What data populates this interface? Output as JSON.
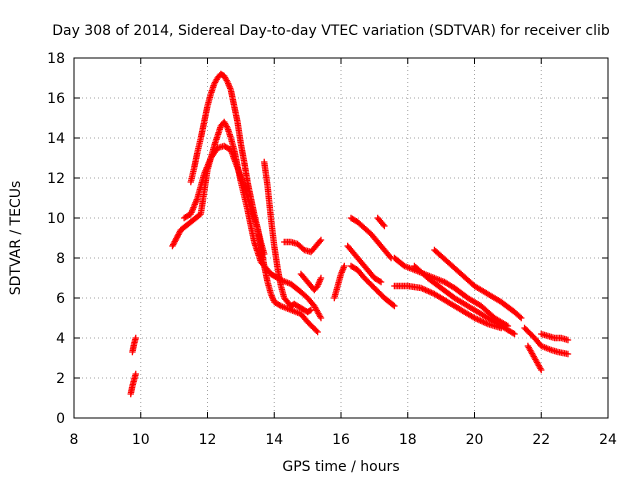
{
  "chart_data": {
    "type": "scatter",
    "title": "Day 308 of 2014, Sidereal Day-to-day VTEC variation (SDTVAR) for receiver clib",
    "xlabel": "GPS time / hours",
    "ylabel": "SDTVAR / TECUs",
    "xlim": [
      8,
      24
    ],
    "ylim": [
      0,
      18
    ],
    "xticks": [
      "8",
      "10",
      "12",
      "14",
      "16",
      "18",
      "20",
      "22",
      "24"
    ],
    "yticks": [
      "0",
      "2",
      "4",
      "6",
      "8",
      "10",
      "12",
      "14",
      "16",
      "18"
    ],
    "grid": true,
    "marker": "+",
    "series_color": "#ff0000",
    "segments": [
      {
        "x": [
          9.75,
          9.8,
          9.85
        ],
        "y": [
          3.3,
          3.7,
          4.0
        ]
      },
      {
        "x": [
          9.7,
          9.75,
          9.8,
          9.85
        ],
        "y": [
          1.2,
          1.6,
          1.9,
          2.2
        ]
      },
      {
        "x": [
          10.95,
          11.2,
          11.5,
          11.8,
          12.0,
          12.2,
          12.4,
          12.5,
          12.6,
          12.7,
          12.8,
          12.9,
          13.0,
          13.2,
          13.4,
          13.6,
          13.8,
          13.9,
          14.0,
          14.2,
          14.5,
          14.8,
          15.0,
          15.2,
          15.4
        ],
        "y": [
          8.6,
          9.4,
          9.8,
          10.2,
          12.4,
          13.6,
          14.6,
          14.8,
          14.5,
          14.0,
          13.4,
          12.6,
          11.8,
          10.4,
          8.8,
          7.8,
          7.4,
          7.2,
          7.1,
          6.9,
          6.7,
          6.3,
          6.0,
          5.6,
          5.0
        ]
      },
      {
        "x": [
          11.3,
          11.5,
          11.7,
          11.9,
          12.1,
          12.3,
          12.5,
          12.7,
          12.9,
          13.1,
          13.3,
          13.5,
          13.6,
          13.7,
          13.8,
          13.9,
          14.0,
          14.2,
          14.5,
          14.8,
          15.0,
          15.3
        ],
        "y": [
          10.0,
          10.2,
          11.0,
          12.2,
          13.0,
          13.5,
          13.6,
          13.4,
          12.5,
          11.6,
          10.5,
          9.5,
          8.6,
          7.6,
          6.8,
          6.2,
          5.8,
          5.6,
          5.4,
          5.2,
          4.8,
          4.3
        ]
      },
      {
        "x": [
          11.5,
          11.6,
          11.7,
          11.8,
          11.9,
          12.0,
          12.1,
          12.2,
          12.3,
          12.4,
          12.5,
          12.6,
          12.7,
          12.8,
          12.9,
          13.0,
          13.1,
          13.2,
          13.3,
          13.4,
          13.5,
          13.6,
          13.7
        ],
        "y": [
          11.8,
          12.5,
          13.3,
          14.0,
          14.8,
          15.6,
          16.2,
          16.7,
          17.0,
          17.2,
          17.1,
          16.8,
          16.4,
          15.6,
          14.8,
          13.7,
          12.8,
          11.8,
          11.0,
          10.2,
          9.5,
          8.8,
          8.2
        ]
      },
      {
        "x": [
          13.7,
          13.8,
          13.9,
          14.0,
          14.1,
          14.2,
          14.3,
          14.4,
          14.5,
          14.6,
          14.8,
          15.0,
          15.1
        ],
        "y": [
          12.8,
          11.6,
          10.0,
          8.6,
          7.5,
          6.6,
          6.0,
          5.8,
          5.6,
          5.7,
          5.5,
          5.3,
          5.4
        ]
      },
      {
        "x": [
          14.3,
          14.5,
          14.7,
          14.9,
          15.1,
          15.3,
          15.4
        ],
        "y": [
          8.8,
          8.8,
          8.7,
          8.4,
          8.3,
          8.7,
          8.9
        ]
      },
      {
        "x": [
          14.8,
          15.0,
          15.2,
          15.3,
          15.4
        ],
        "y": [
          7.2,
          6.8,
          6.4,
          6.6,
          7.0
        ]
      },
      {
        "x": [
          15.8,
          15.9,
          16.0,
          16.1
        ],
        "y": [
          6.0,
          6.6,
          7.2,
          7.6
        ]
      },
      {
        "x": [
          16.3,
          16.5,
          16.7,
          16.9,
          17.1,
          17.3,
          17.5
        ],
        "y": [
          10.0,
          9.8,
          9.5,
          9.2,
          8.8,
          8.4,
          8.0
        ]
      },
      {
        "x": [
          16.2,
          16.4,
          16.6,
          16.8,
          17.0,
          17.2
        ],
        "y": [
          8.6,
          8.2,
          7.8,
          7.4,
          7.0,
          6.8
        ]
      },
      {
        "x": [
          16.3,
          16.5,
          16.7,
          17.0,
          17.3,
          17.6
        ],
        "y": [
          7.6,
          7.4,
          7.0,
          6.5,
          6.0,
          5.6
        ]
      },
      {
        "x": [
          17.1,
          17.3
        ],
        "y": [
          10.0,
          9.6
        ]
      },
      {
        "x": [
          17.6,
          17.9,
          18.2,
          18.5,
          18.8,
          19.1,
          19.4,
          19.8,
          20.2,
          20.6,
          21.0
        ],
        "y": [
          8.0,
          7.6,
          7.4,
          7.2,
          7.0,
          6.8,
          6.5,
          6.0,
          5.6,
          5.0,
          4.6
        ]
      },
      {
        "x": [
          17.6,
          18.0,
          18.4,
          18.8,
          19.2,
          19.6,
          20.0,
          20.4,
          20.8
        ],
        "y": [
          6.6,
          6.6,
          6.5,
          6.2,
          5.8,
          5.4,
          5.0,
          4.7,
          4.5
        ]
      },
      {
        "x": [
          18.2,
          18.6,
          19.0,
          19.4,
          19.8,
          20.2,
          20.6,
          21.0,
          21.2
        ],
        "y": [
          7.6,
          7.0,
          6.5,
          6.0,
          5.6,
          5.2,
          4.8,
          4.4,
          4.2
        ]
      },
      {
        "x": [
          18.8,
          19.2,
          19.6,
          20.0,
          20.4,
          20.8,
          21.2,
          21.4
        ],
        "y": [
          8.4,
          7.8,
          7.2,
          6.6,
          6.2,
          5.8,
          5.3,
          5.0
        ]
      },
      {
        "x": [
          21.5,
          21.8,
          22.0,
          22.3,
          22.5,
          22.8
        ],
        "y": [
          4.5,
          4.0,
          3.6,
          3.4,
          3.3,
          3.2
        ]
      },
      {
        "x": [
          21.6,
          21.8,
          22.0
        ],
        "y": [
          3.6,
          3.0,
          2.4
        ]
      },
      {
        "x": [
          22.0,
          22.2,
          22.4,
          22.6,
          22.8
        ],
        "y": [
          4.2,
          4.1,
          4.0,
          4.0,
          3.9
        ]
      }
    ]
  }
}
